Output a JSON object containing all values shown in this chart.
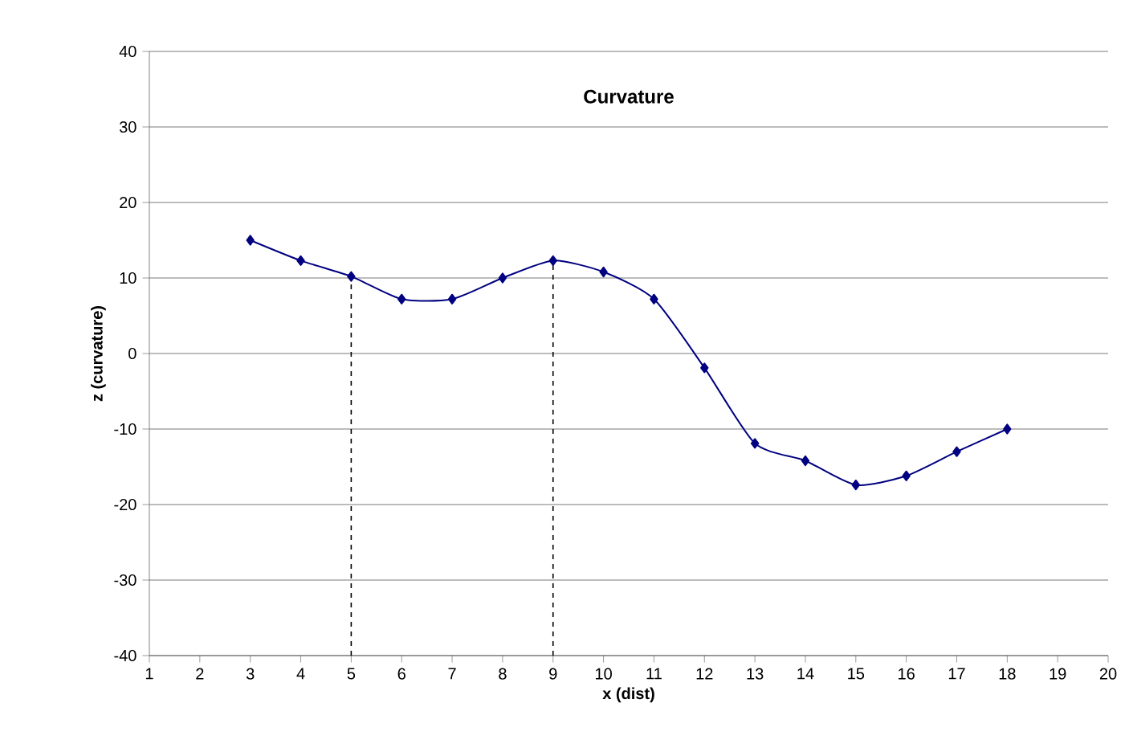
{
  "chart_data": {
    "type": "line",
    "title": "Curvature",
    "xlabel": "x (dist)",
    "ylabel": "z (curvature)",
    "x": [
      3,
      4,
      5,
      6,
      7,
      8,
      9,
      10,
      11,
      12,
      13,
      14,
      15,
      16,
      17,
      18
    ],
    "series": [
      {
        "color": "#000080",
        "values": [
          15,
          12.3,
          10.2,
          7.2,
          7.2,
          10,
          12.3,
          10.8,
          7.2,
          -1.9,
          -11.9,
          -14.2,
          -17.4,
          -16.2,
          -13,
          -10
        ]
      }
    ],
    "xlim": [
      1,
      20
    ],
    "xticks": [
      1,
      2,
      3,
      4,
      5,
      6,
      7,
      8,
      9,
      10,
      11,
      12,
      13,
      14,
      15,
      16,
      17,
      18,
      19,
      20
    ],
    "ylim": [
      -40,
      40
    ],
    "yticks": [
      -40,
      -30,
      -20,
      -10,
      0,
      10,
      20,
      30,
      40
    ],
    "grid": "y",
    "marker": "diamond",
    "line_style": "solid",
    "ref_lines": [
      {
        "axis": "x",
        "value": 5,
        "color": "#000000",
        "line_style": "dashed"
      },
      {
        "axis": "x",
        "value": 9,
        "color": "#000000",
        "line_style": "dashed"
      }
    ]
  }
}
